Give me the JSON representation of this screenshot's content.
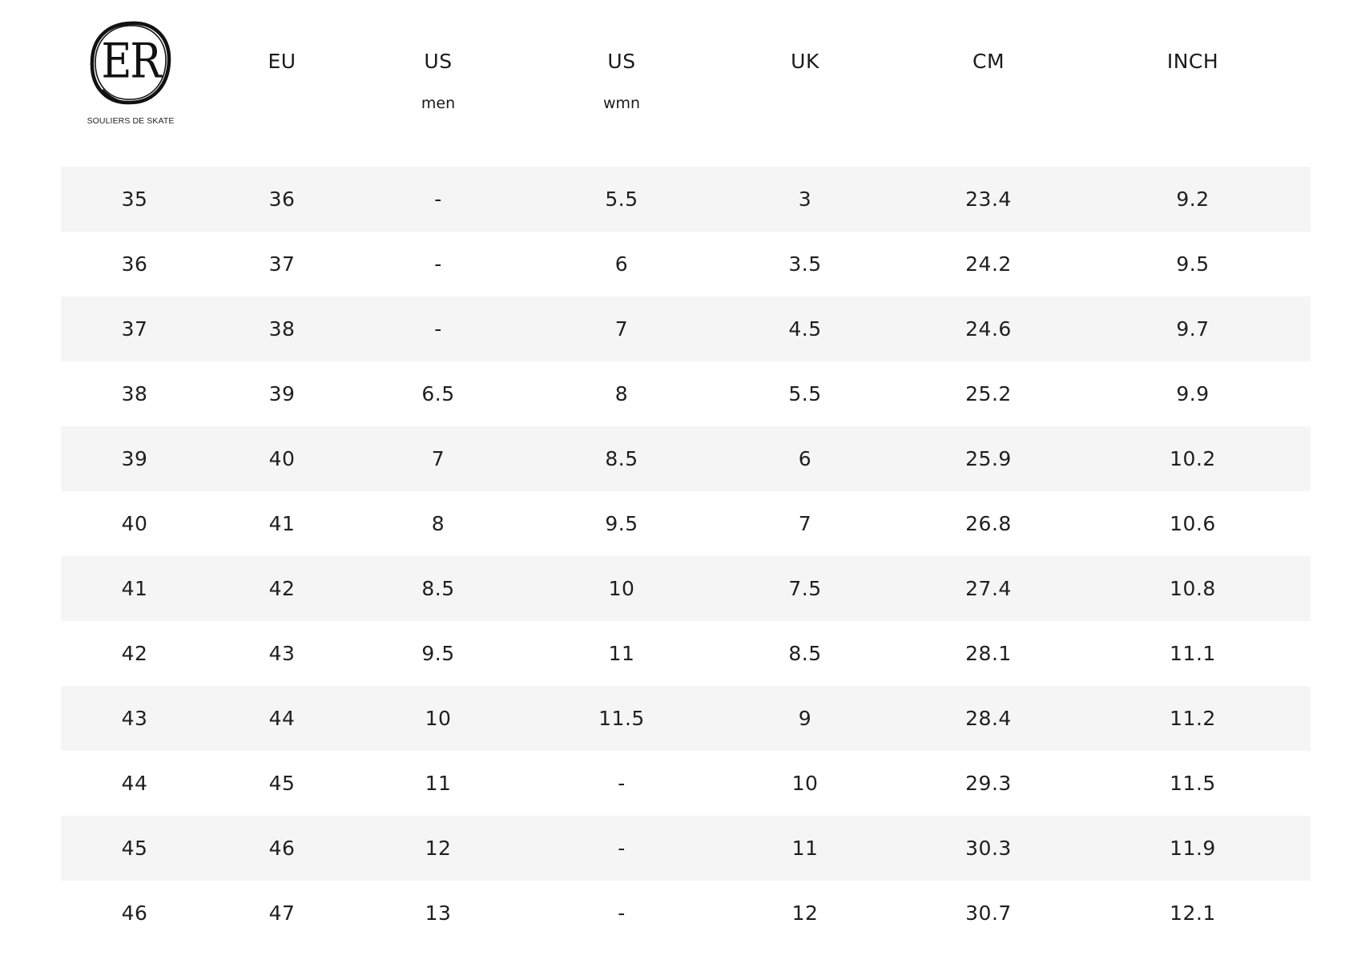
{
  "logo": {
    "monogram": "ER",
    "tagline": "SOULIERS DE SKATE"
  },
  "columns": [
    {
      "label": "",
      "sub": ""
    },
    {
      "label": "EU",
      "sub": ""
    },
    {
      "label": "US",
      "sub": "men"
    },
    {
      "label": "US",
      "sub": "wmn"
    },
    {
      "label": "UK",
      "sub": ""
    },
    {
      "label": "CM",
      "sub": ""
    },
    {
      "label": "INCH",
      "sub": ""
    }
  ],
  "rows": [
    [
      "35",
      "36",
      "-",
      "5.5",
      "3",
      "23.4",
      "9.2"
    ],
    [
      "36",
      "37",
      "-",
      "6",
      "3.5",
      "24.2",
      "9.5"
    ],
    [
      "37",
      "38",
      "-",
      "7",
      "4.5",
      "24.6",
      "9.7"
    ],
    [
      "38",
      "39",
      "6.5",
      "8",
      "5.5",
      "25.2",
      "9.9"
    ],
    [
      "39",
      "40",
      "7",
      "8.5",
      "6",
      "25.9",
      "10.2"
    ],
    [
      "40",
      "41",
      "8",
      "9.5",
      "7",
      "26.8",
      "10.6"
    ],
    [
      "41",
      "42",
      "8.5",
      "10",
      "7.5",
      "27.4",
      "10.8"
    ],
    [
      "42",
      "43",
      "9.5",
      "11",
      "8.5",
      "28.1",
      "11.1"
    ],
    [
      "43",
      "44",
      "10",
      "11.5",
      "9",
      "28.4",
      "11.2"
    ],
    [
      "44",
      "45",
      "11",
      "-",
      "10",
      "29.3",
      "11.5"
    ],
    [
      "45",
      "46",
      "12",
      "-",
      "11",
      "30.3",
      "11.9"
    ],
    [
      "46",
      "47",
      "13",
      "-",
      "12",
      "30.7",
      "12.1"
    ]
  ],
  "colors": {
    "shaded_row": "#f5f5f5",
    "plain_row": "#ffffff",
    "text": "#1f1f1f"
  }
}
